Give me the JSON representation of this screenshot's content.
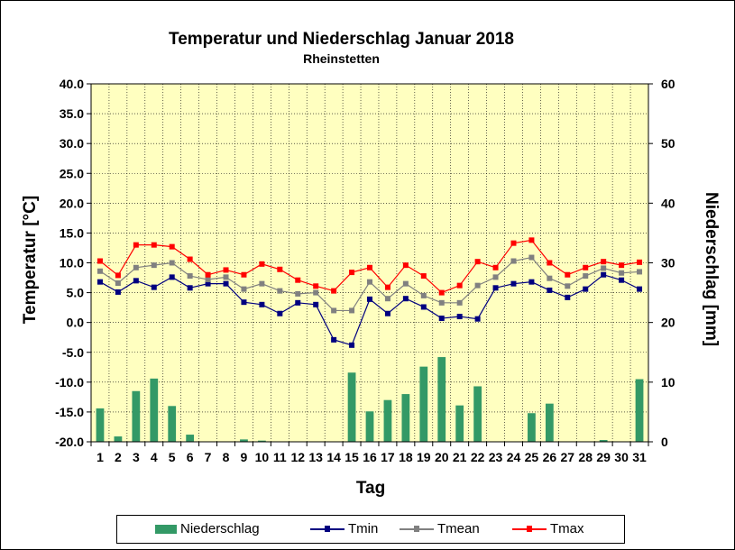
{
  "chart_data": {
    "type": "bar+line",
    "title": "Temperatur und Niederschlag  Januar 2018",
    "subtitle": "Rheinstetten",
    "xlabel": "Tag",
    "ylabel_left": "Temperatur [°C]",
    "ylabel_right": "Niederschlag [mm]",
    "y_left_lim": [
      -20,
      40
    ],
    "y_left_ticks": [
      "-20.0",
      "-15.0",
      "-10.0",
      "-5.0",
      "0.0",
      "5.0",
      "10.0",
      "15.0",
      "20.0",
      "25.0",
      "30.0",
      "35.0",
      "40.0"
    ],
    "y_right_lim": [
      0,
      60
    ],
    "y_right_ticks": [
      "0",
      "10",
      "20",
      "30",
      "40",
      "50",
      "60"
    ],
    "categories": [
      "1",
      "2",
      "3",
      "4",
      "5",
      "6",
      "7",
      "8",
      "9",
      "10",
      "11",
      "12",
      "13",
      "14",
      "15",
      "16",
      "17",
      "18",
      "19",
      "20",
      "21",
      "22",
      "23",
      "24",
      "25",
      "26",
      "27",
      "28",
      "29",
      "30",
      "31"
    ],
    "grid": true,
    "legend_position": "bottom",
    "series": [
      {
        "name": "Niederschlag",
        "axis": "right",
        "kind": "bar",
        "color": "#339966",
        "values": [
          5.6,
          0.9,
          8.5,
          10.6,
          6.0,
          1.2,
          0,
          0,
          0.4,
          0.2,
          0,
          0,
          0,
          0,
          11.6,
          5.1,
          7.0,
          8.0,
          12.6,
          14.2,
          6.1,
          9.3,
          0,
          0,
          4.8,
          6.4,
          0,
          0,
          0.3,
          0,
          10.5
        ]
      },
      {
        "name": "Tmin",
        "axis": "left",
        "kind": "line",
        "color": "#000080",
        "values": [
          6.8,
          5.1,
          7.0,
          5.9,
          7.6,
          5.8,
          6.5,
          6.5,
          3.4,
          3.0,
          1.5,
          3.3,
          3.0,
          -2.9,
          -3.8,
          3.9,
          1.5,
          4.0,
          2.6,
          0.7,
          1.0,
          0.6,
          5.8,
          6.5,
          6.8,
          5.4,
          4.2,
          5.6,
          8.0,
          7.1,
          5.6
        ]
      },
      {
        "name": "Tmean",
        "axis": "left",
        "kind": "line",
        "color": "#808080",
        "values": [
          8.6,
          6.6,
          9.2,
          9.6,
          10.0,
          7.8,
          7.2,
          7.6,
          5.6,
          6.5,
          5.3,
          4.8,
          5.0,
          2.0,
          2.0,
          6.8,
          4.0,
          6.5,
          4.5,
          3.3,
          3.3,
          6.2,
          7.6,
          10.3,
          10.9,
          7.4,
          6.1,
          7.8,
          9.1,
          8.3,
          8.5
        ]
      },
      {
        "name": "Tmax",
        "axis": "left",
        "kind": "line",
        "color": "#FF0000",
        "values": [
          10.3,
          7.9,
          13.0,
          13.0,
          12.7,
          10.6,
          8.0,
          8.8,
          8.0,
          9.8,
          8.9,
          7.1,
          6.1,
          5.3,
          8.4,
          9.2,
          5.9,
          9.6,
          7.8,
          5.0,
          6.2,
          10.2,
          9.2,
          13.3,
          13.8,
          10.0,
          8.0,
          9.2,
          10.2,
          9.6,
          10.1
        ]
      }
    ]
  },
  "legend": {
    "precip": "Niederschlag",
    "tmin": "Tmin",
    "tmean": "Tmean",
    "tmax": "Tmax"
  }
}
